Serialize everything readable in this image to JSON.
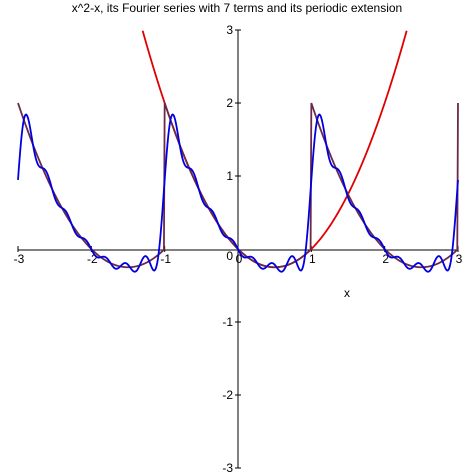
{
  "chart_data": {
    "type": "line",
    "title": "x^2-x, its Fourier series with 7 terms and its periodic extension",
    "xlabel": "x",
    "ylabel": "",
    "xlim": [
      -3,
      3
    ],
    "ylim": [
      -3,
      3
    ],
    "x_ticks": [
      -3,
      -2,
      -1,
      0,
      1,
      2,
      3
    ],
    "x_tick_labels": [
      "-3",
      "-2",
      "-1",
      "0",
      "1",
      "2",
      "3"
    ],
    "y_ticks": [
      -3,
      -2,
      -1,
      1,
      2,
      3
    ],
    "y_tick_labels": [
      "-3",
      "-2",
      "-1",
      "1",
      "2",
      "3"
    ],
    "grid": false,
    "legend": "none",
    "series": [
      {
        "kind": "function",
        "expression": "x^2 - x",
        "color": "#e00000"
      },
      {
        "kind": "periodic_extension",
        "expression": "x^2 - x",
        "period": 2,
        "base_interval": [
          -1,
          1
        ],
        "color": "#6b2a4a"
      },
      {
        "kind": "fourier_series",
        "expression": "x^2 - x",
        "terms": 7,
        "period": 2,
        "color": "#0000e0"
      }
    ]
  }
}
